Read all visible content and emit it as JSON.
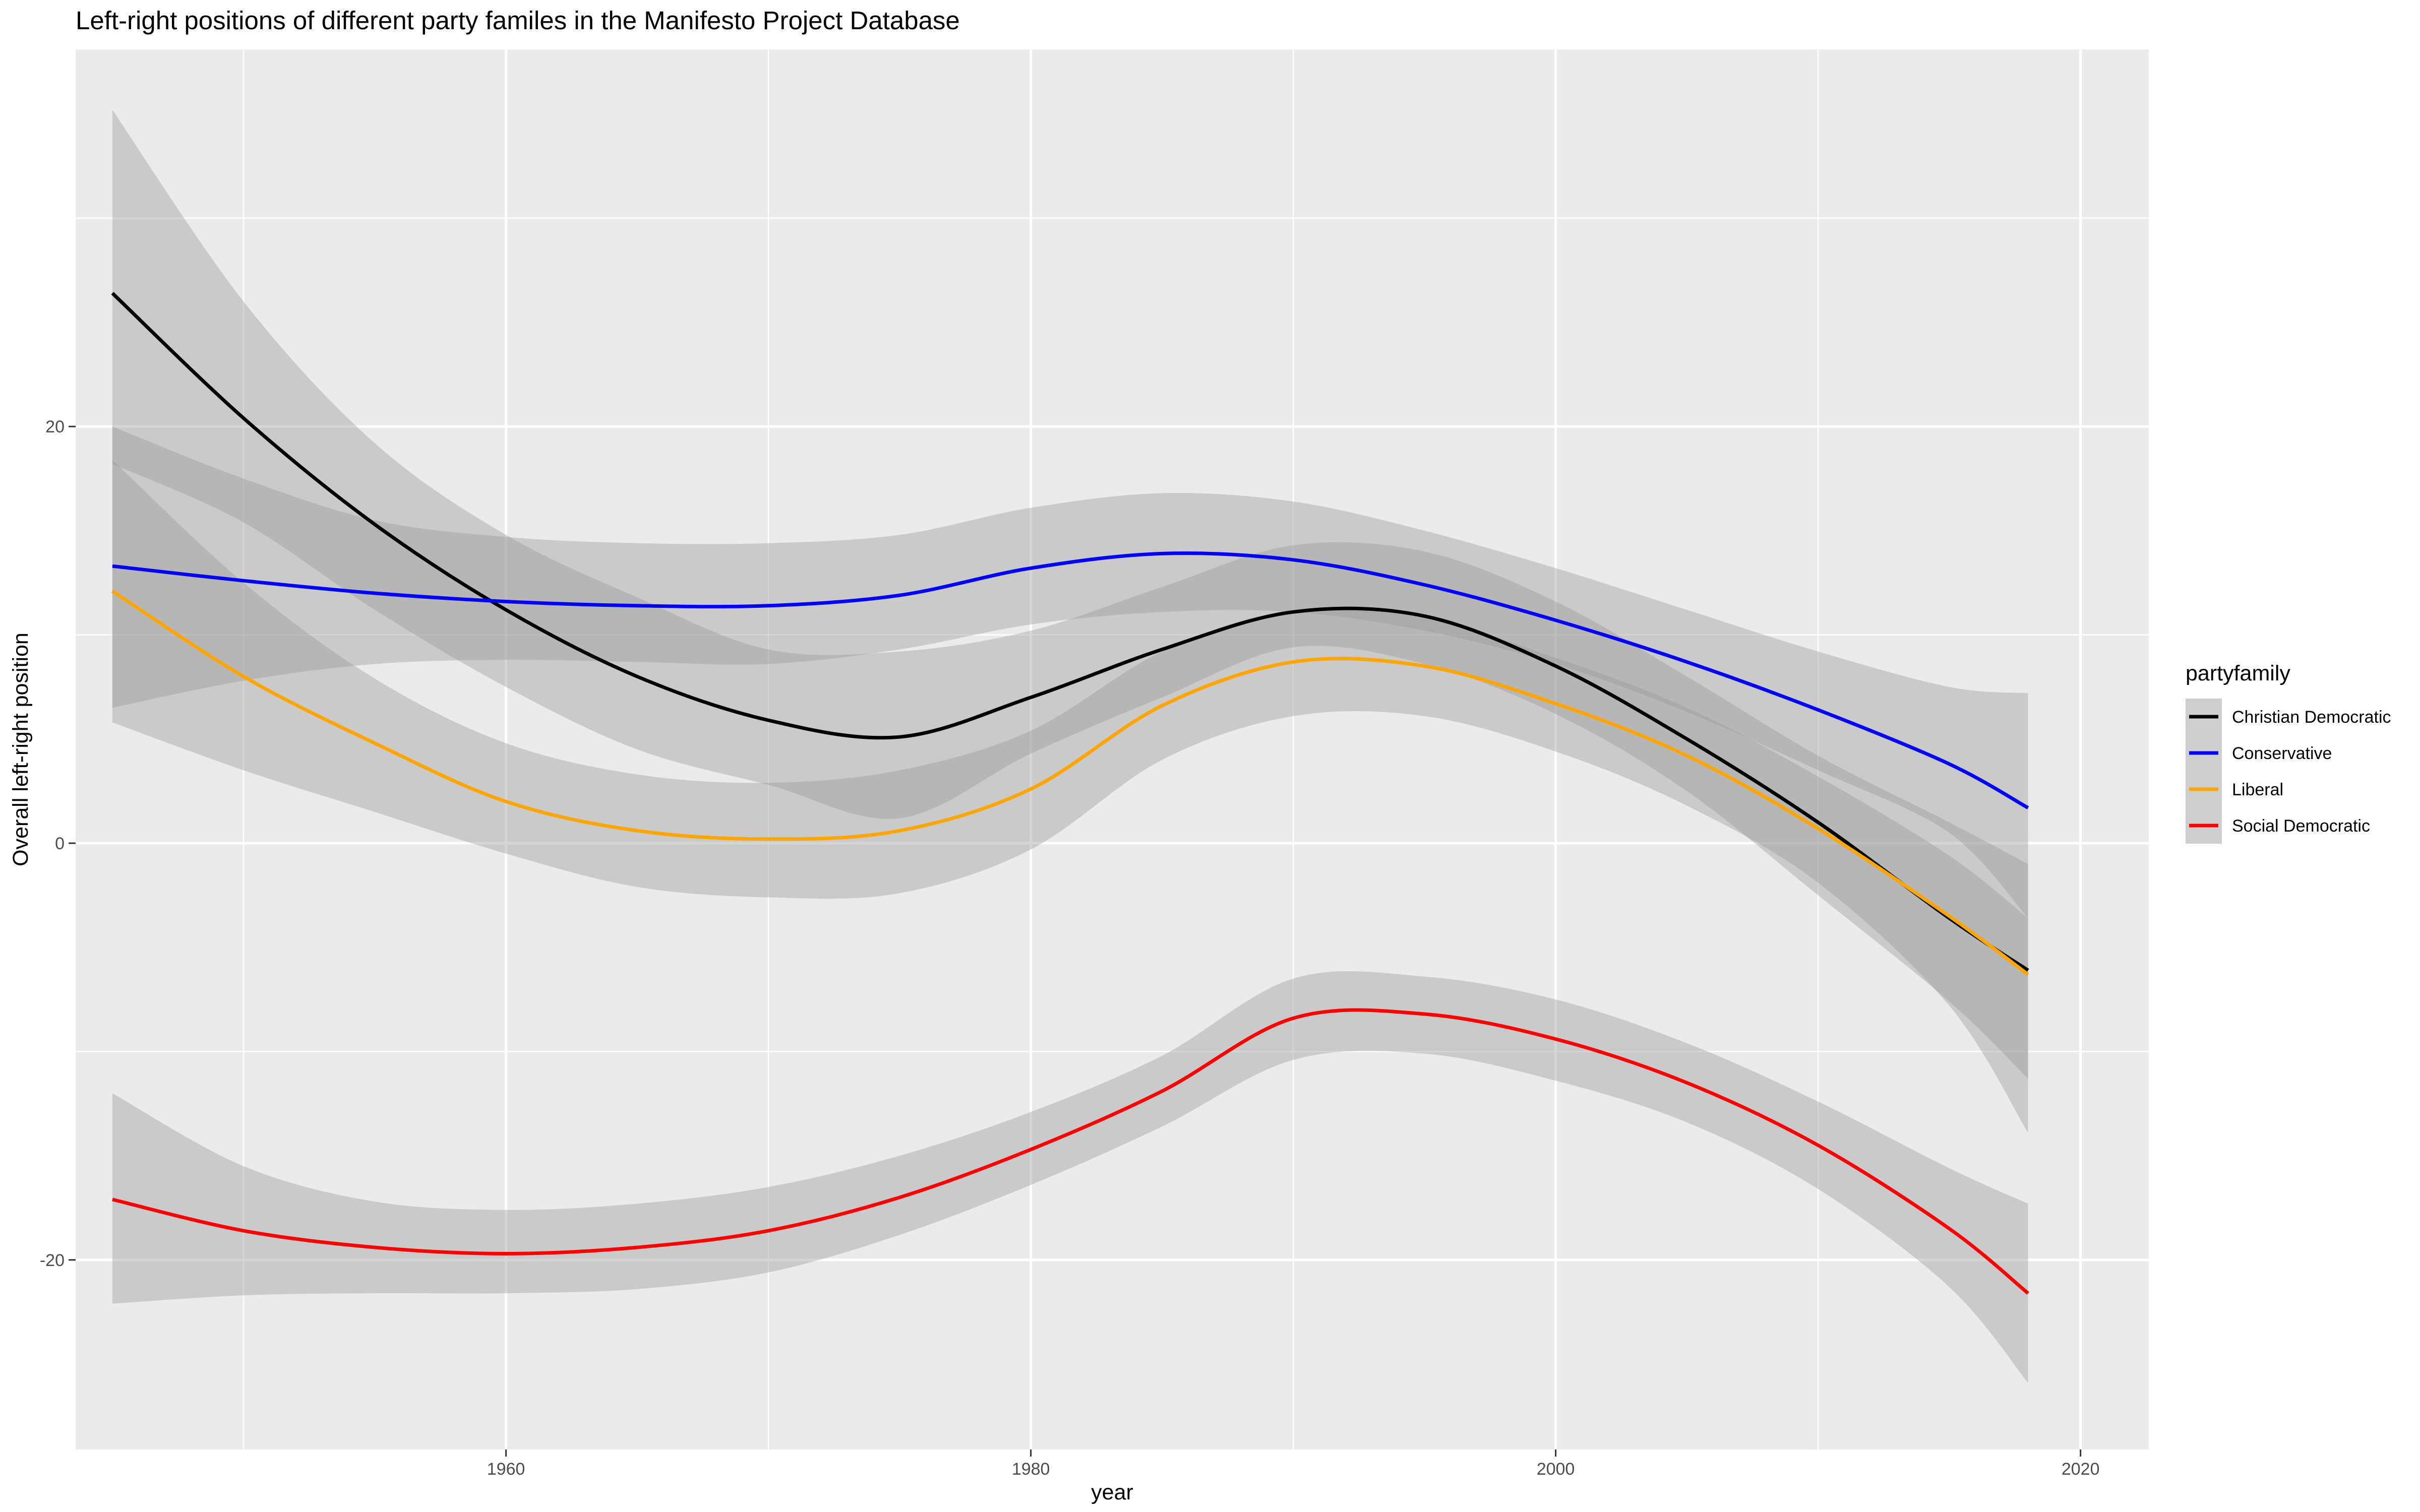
{
  "chart_data": {
    "type": "line",
    "title": "Left-right positions of different party familes in the Manifesto Project Database",
    "xlabel": "year",
    "ylabel": "Overall left-right position",
    "xlim": [
      1943.6,
      2022.6
    ],
    "ylim": [
      -29.1,
      38.1
    ],
    "x_ticks": [
      1960,
      1980,
      2000,
      2020
    ],
    "y_ticks": [
      -20,
      0,
      20
    ],
    "grid": true,
    "legend": {
      "title": "partyfamily",
      "position": "right"
    },
    "series": [
      {
        "name": "Christian Democratic",
        "color": "#000000",
        "x": [
          1945,
          1950,
          1955,
          1960,
          1965,
          1970,
          1975,
          1980,
          1985,
          1990,
          1995,
          2000,
          2005,
          2010,
          2015,
          2018
        ],
        "y": [
          26.4,
          20.4,
          15.3,
          11.2,
          8.0,
          5.9,
          5.1,
          7.0,
          9.3,
          11.1,
          10.9,
          8.5,
          5.0,
          1.0,
          -3.6,
          -6.1
        ],
        "lower": [
          18.2,
          15.4,
          11.2,
          7.5,
          4.5,
          2.8,
          1.2,
          4.3,
          7.0,
          9.4,
          8.6,
          6.2,
          2.5,
          -2.5,
          -7.6,
          -11.3
        ],
        "upper": [
          35.2,
          26.0,
          19.2,
          14.8,
          11.8,
          9.3,
          9.2,
          10.2,
          12.3,
          14.3,
          14.0,
          11.6,
          8.0,
          4.2,
          1.0,
          -1.0
        ]
      },
      {
        "name": "Conservative",
        "color": "#0000ff",
        "x": [
          1945,
          1950,
          1955,
          1960,
          1965,
          1970,
          1975,
          1980,
          1985,
          1990,
          1995,
          2000,
          2005,
          2010,
          2015,
          2018
        ],
        "y": [
          13.3,
          12.6,
          12.0,
          11.6,
          11.4,
          11.4,
          11.9,
          13.2,
          13.9,
          13.6,
          12.4,
          10.7,
          8.7,
          6.4,
          3.8,
          1.7
        ],
        "lower": [
          6.5,
          7.8,
          8.6,
          8.8,
          8.7,
          8.6,
          9.3,
          10.5,
          11.1,
          11.1,
          10.2,
          8.6,
          6.3,
          3.5,
          0.5,
          -3.6
        ],
        "upper": [
          20.0,
          17.5,
          15.5,
          14.7,
          14.4,
          14.4,
          14.8,
          16.1,
          16.8,
          16.4,
          15.0,
          13.2,
          11.2,
          9.2,
          7.5,
          7.2
        ]
      },
      {
        "name": "Liberal",
        "color": "#ffa500",
        "x": [
          1945,
          1950,
          1955,
          1960,
          1965,
          1970,
          1975,
          1980,
          1985,
          1990,
          1995,
          2000,
          2005,
          2010,
          2015,
          2018
        ],
        "y": [
          12.1,
          8.0,
          4.8,
          2.0,
          0.6,
          0.2,
          0.6,
          2.6,
          6.6,
          8.7,
          8.5,
          6.7,
          4.2,
          0.7,
          -3.5,
          -6.3
        ],
        "lower": [
          5.8,
          3.5,
          1.5,
          -0.5,
          -2.1,
          -2.6,
          -2.4,
          -0.3,
          4.0,
          6.1,
          6.1,
          4.4,
          1.8,
          -1.9,
          -7.8,
          -13.9
        ],
        "upper": [
          18.4,
          12.5,
          7.9,
          4.8,
          3.3,
          2.9,
          3.5,
          5.4,
          9.2,
          11.2,
          10.8,
          8.9,
          6.5,
          3.2,
          -0.6,
          -3.6
        ]
      },
      {
        "name": "Social Democratic",
        "color": "#ff0000",
        "x": [
          1945,
          1950,
          1955,
          1960,
          1965,
          1970,
          1975,
          1980,
          1985,
          1990,
          1995,
          2000,
          2005,
          2010,
          2015,
          2018
        ],
        "y": [
          -17.1,
          -18.6,
          -19.4,
          -19.7,
          -19.4,
          -18.6,
          -17.0,
          -14.7,
          -11.9,
          -8.4,
          -8.2,
          -9.4,
          -11.5,
          -14.5,
          -18.5,
          -21.6
        ],
        "lower": [
          -22.1,
          -21.7,
          -21.6,
          -21.6,
          -21.4,
          -20.6,
          -18.8,
          -16.4,
          -13.6,
          -10.4,
          -10.1,
          -11.4,
          -13.4,
          -16.6,
          -21.3,
          -25.9
        ],
        "upper": [
          -12.0,
          -15.5,
          -17.2,
          -17.6,
          -17.3,
          -16.5,
          -15.0,
          -12.9,
          -10.2,
          -6.5,
          -6.4,
          -7.5,
          -9.6,
          -12.4,
          -15.6,
          -17.3
        ]
      }
    ]
  }
}
